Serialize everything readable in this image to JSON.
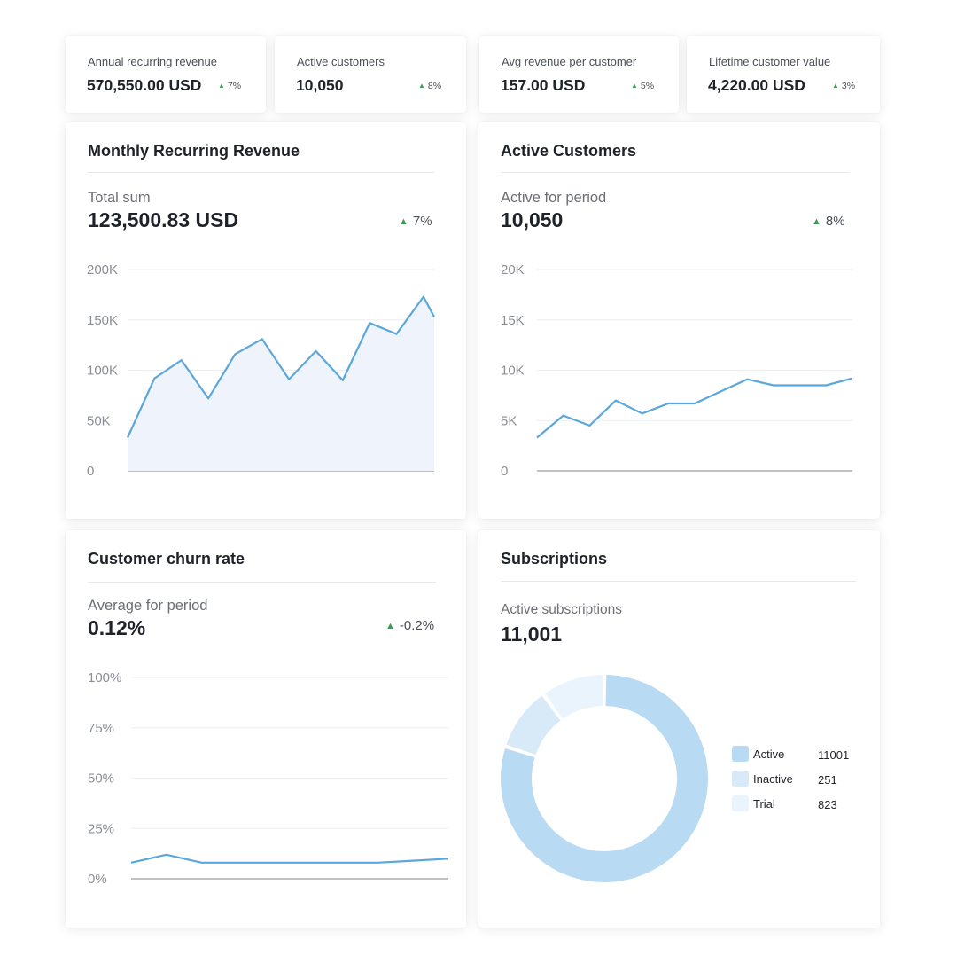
{
  "kpis": [
    {
      "label": "Annual recurring revenue",
      "value": "570,550.00 USD",
      "delta": "7%"
    },
    {
      "label": "Active customers",
      "value": "10,050",
      "delta": "8%"
    },
    {
      "label": "Avg revenue per customer",
      "value": "157.00 USD",
      "delta": "5%"
    },
    {
      "label": "Lifetime customer value",
      "value": "4,220.00 USD",
      "delta": "3%"
    }
  ],
  "panels": {
    "mrr": {
      "title": "Monthly Recurring Revenue",
      "sub": "Total sum",
      "value": "123,500.83 USD",
      "delta": "7%"
    },
    "active": {
      "title": "Active Customers",
      "sub": "Active for period",
      "value": "10,050",
      "delta": "8%"
    },
    "churn": {
      "title": "Customer churn rate",
      "sub": "Average for period",
      "value": "0.12%",
      "delta": "-0.2%"
    },
    "subs": {
      "title": "Subscriptions",
      "sub": "Active subscriptions",
      "value": "11,001"
    }
  },
  "colors": {
    "line": "#5ba7db",
    "area": "#eef3fc",
    "up": "#3f9a55",
    "active": "#b8dbf3",
    "inactive": "#d8eaf8",
    "trial": "#eaf4fc"
  },
  "chart_data": [
    {
      "type": "area",
      "ytick_labels": [
        "0",
        "50K",
        "100K",
        "150K",
        "200K"
      ],
      "yticks": [
        0,
        50000,
        100000,
        150000,
        200000
      ],
      "ylim": [
        0,
        200000
      ],
      "x": [
        0,
        1,
        2,
        3,
        4,
        5,
        6,
        7,
        8,
        9,
        10,
        11,
        11.4
      ],
      "values": [
        33000,
        92000,
        110000,
        72000,
        116000,
        131000,
        91000,
        119000,
        90000,
        147000,
        136000,
        173000,
        153000
      ],
      "grid": true
    },
    {
      "type": "line",
      "ytick_labels": [
        "0",
        "5K",
        "10K",
        "15K",
        "20K"
      ],
      "yticks": [
        0,
        5000,
        10000,
        15000,
        20000
      ],
      "ylim": [
        0,
        20000
      ],
      "x": [
        0,
        1,
        2,
        3,
        4,
        5,
        6,
        7,
        8,
        9,
        10,
        11,
        12
      ],
      "values": [
        3300,
        5500,
        4500,
        7000,
        5700,
        6700,
        6700,
        7900,
        9100,
        8500,
        8500,
        8500,
        9200
      ],
      "grid": true
    },
    {
      "type": "line",
      "ytick_labels": [
        "0%",
        "25%",
        "50%",
        "75%",
        "100%"
      ],
      "yticks": [
        0,
        25,
        50,
        75,
        100
      ],
      "ylim": [
        0,
        100
      ],
      "x": [
        0,
        1,
        2,
        3,
        4,
        5,
        6,
        7,
        8,
        9
      ],
      "values": [
        8,
        12,
        8,
        8,
        8,
        8,
        8,
        8,
        9,
        10
      ],
      "grid": true
    },
    {
      "type": "pie",
      "categories": [
        "Active",
        "Inactive",
        "Trial"
      ],
      "values": [
        11001,
        251,
        823
      ],
      "legend": "right"
    }
  ]
}
